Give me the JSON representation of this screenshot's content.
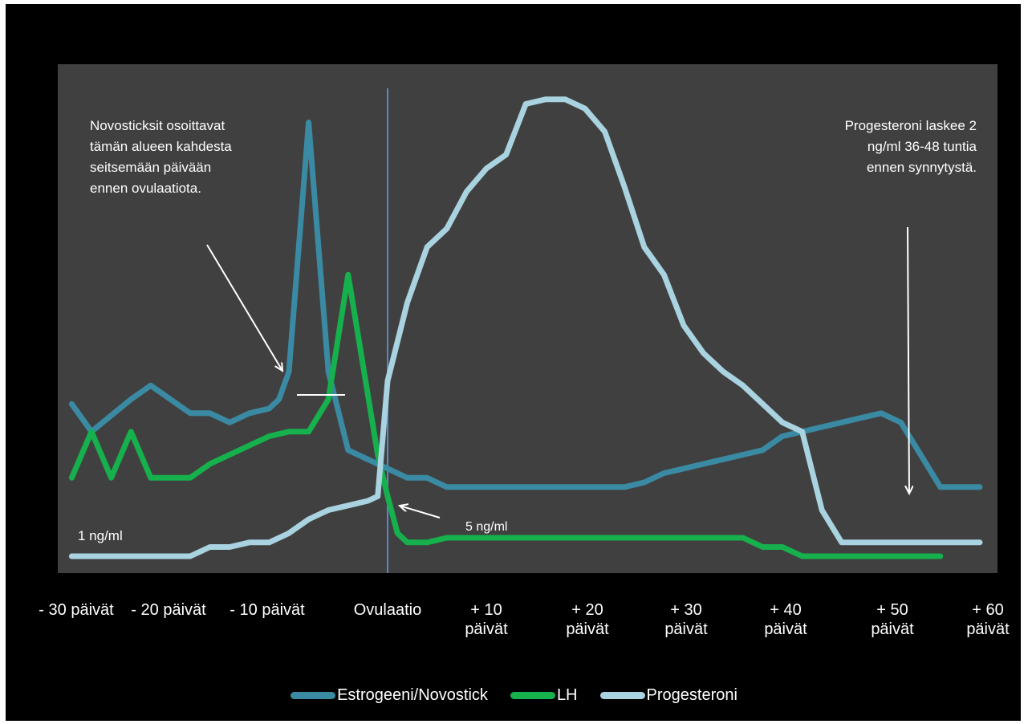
{
  "colors": {
    "background": "#000000",
    "plot_background": "#404040",
    "estrogen": "#3a8aa3",
    "lh": "#16b04c",
    "progesterone": "#a9d3e0",
    "ovulation_line": "#5b87c4",
    "annotation": "#ffffff"
  },
  "annotations": {
    "left_note": [
      "Novosticksit osoittavat",
      "tämän alueen kahdesta",
      "seitsemään päivään",
      "ennen ovulaatiota."
    ],
    "right_note": [
      "Progesteroni laskee 2",
      "ng/ml 36-48 tuntia",
      "ennen synnytystä."
    ],
    "one_ng": "1 ng/ml",
    "five_ng": "5 ng/ml"
  },
  "chart_data": {
    "type": "line",
    "title": "",
    "xlabel": "",
    "ylabel": "",
    "x_tick_labels": [
      {
        "line1": "- 30 päivät",
        "line2": ""
      },
      {
        "line1": "- 20 päivät",
        "line2": ""
      },
      {
        "line1": "- 10 päivät",
        "line2": ""
      },
      {
        "line1": "Ovulaatio",
        "line2": ""
      },
      {
        "line1": "+ 10",
        "line2": "päivät"
      },
      {
        "line1": "+ 20",
        "line2": "päivät"
      },
      {
        "line1": "+ 30",
        "line2": "päivät"
      },
      {
        "line1": "+ 40",
        "line2": "päivät"
      },
      {
        "line1": "+ 50",
        "line2": "päivät"
      },
      {
        "line1": "+ 60",
        "line2": "päivät"
      }
    ],
    "x_tick_days": [
      -30,
      -20,
      -10,
      0,
      10,
      20,
      30,
      40,
      50,
      60
    ],
    "xlim": [
      -32,
      60
    ],
    "ylim": [
      0,
      100
    ],
    "grid": false,
    "legend_position": "bottom",
    "ovulation_day": 0,
    "series": [
      {
        "name": "Estrogeeni/Novostick",
        "x": [
          -32,
          -30,
          -26,
          -24,
          -22,
          -20,
          -18,
          -16,
          -14,
          -12,
          -11,
          -10,
          -8,
          -6,
          -4,
          -2,
          0,
          2,
          4,
          6,
          8,
          10,
          12,
          14,
          16,
          18,
          20,
          22,
          24,
          26,
          28,
          30,
          32,
          34,
          36,
          38,
          40,
          42,
          44,
          46,
          48,
          50,
          52,
          54,
          56,
          58,
          60
        ],
        "y": [
          33,
          27,
          34,
          37,
          34,
          31,
          31,
          29,
          31,
          32,
          34,
          40,
          94,
          40,
          23,
          21,
          19,
          17,
          17,
          15,
          15,
          15,
          15,
          15,
          15,
          15,
          15,
          15,
          15,
          16,
          18,
          19,
          20,
          21,
          22,
          23,
          26,
          27,
          28,
          29,
          30,
          31,
          29,
          22,
          15,
          15,
          15
        ],
        "values": [
          33,
          27,
          34,
          37,
          34,
          31,
          31,
          29,
          31,
          32,
          34,
          40,
          94,
          40,
          23,
          21,
          19,
          17,
          17,
          15,
          15,
          15,
          15,
          15,
          15,
          15,
          15,
          15,
          15,
          16,
          18,
          19,
          20,
          21,
          22,
          23,
          26,
          27,
          28,
          29,
          30,
          31,
          29,
          22,
          15,
          15,
          15
        ]
      },
      {
        "name": "LH",
        "x": [
          -32,
          -30,
          -28,
          -26,
          -24,
          -22,
          -20,
          -18,
          -16,
          -14,
          -12,
          -10,
          -8,
          -6,
          -4,
          -2,
          -1,
          0,
          1,
          2,
          4,
          6,
          8,
          10,
          12,
          14,
          16,
          18,
          20,
          22,
          24,
          26,
          28,
          30,
          32,
          34,
          36,
          38,
          40,
          42,
          44,
          46,
          48,
          50,
          52,
          54,
          56
        ],
        "y": [
          17,
          27,
          17,
          27,
          17,
          17,
          17,
          20,
          22,
          24,
          26,
          27,
          27,
          34,
          61,
          35,
          22,
          13,
          5,
          3,
          3,
          4,
          4,
          4,
          4,
          4,
          4,
          4,
          4,
          4,
          4,
          4,
          4,
          4,
          4,
          4,
          4,
          2,
          2,
          0,
          0,
          0,
          0,
          0,
          0,
          0,
          0
        ],
        "values": [
          17,
          27,
          17,
          27,
          17,
          17,
          17,
          20,
          22,
          24,
          26,
          27,
          27,
          34,
          61,
          35,
          22,
          13,
          5,
          3,
          3,
          4,
          4,
          4,
          4,
          4,
          4,
          4,
          4,
          4,
          4,
          4,
          4,
          4,
          4,
          4,
          4,
          2,
          2,
          0,
          0,
          0,
          0,
          0,
          0,
          0,
          0
        ]
      },
      {
        "name": "Progesteroni",
        "x": [
          -32,
          -28,
          -24,
          -20,
          -18,
          -16,
          -14,
          -12,
          -10,
          -8,
          -6,
          -4,
          -2,
          -1,
          0,
          2,
          4,
          6,
          8,
          10,
          12,
          14,
          16,
          18,
          20,
          22,
          24,
          26,
          28,
          30,
          32,
          34,
          36,
          38,
          40,
          42,
          44,
          46,
          48,
          50,
          52,
          54,
          56,
          58,
          60
        ],
        "y": [
          0,
          0,
          0,
          0,
          2,
          2,
          3,
          3,
          5,
          8,
          10,
          11,
          12,
          13,
          38,
          55,
          67,
          71,
          79,
          84,
          87,
          98,
          99,
          99,
          97,
          92,
          80,
          67,
          61,
          50,
          44,
          40,
          37,
          33,
          29,
          27,
          10,
          3,
          3,
          3,
          3,
          3,
          3,
          3,
          3
        ],
        "values": [
          0,
          0,
          0,
          0,
          2,
          2,
          3,
          3,
          5,
          8,
          10,
          11,
          12,
          13,
          38,
          55,
          67,
          71,
          79,
          84,
          87,
          98,
          99,
          99,
          97,
          92,
          80,
          67,
          61,
          50,
          44,
          40,
          37,
          33,
          29,
          27,
          10,
          3,
          3,
          3,
          3,
          3,
          3,
          3,
          3
        ]
      }
    ]
  }
}
